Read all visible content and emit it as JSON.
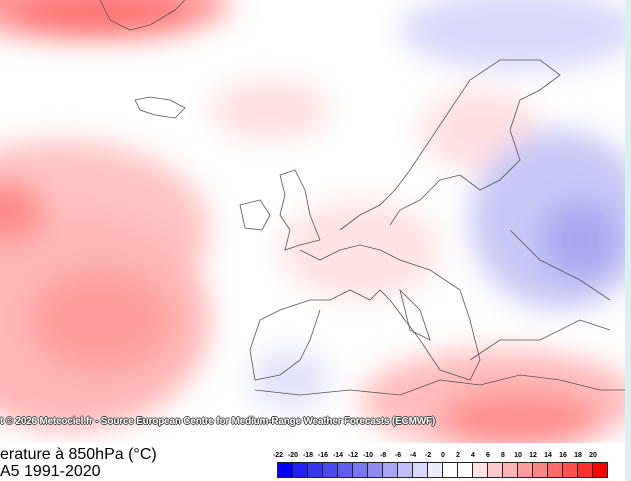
{
  "credit": "t © 2026 Meteociel.fr - Source European Centre for Medium-Range Weather Forecasts (ECMWF)",
  "title_line1": "erature à 850hPa (°C)",
  "title_line2": "A5 1991-2020",
  "colorbar": {
    "labels": [
      "-22",
      "-20",
      "-18",
      "-16",
      "-14",
      "-12",
      "-10",
      "-8",
      "-6",
      "-4",
      "-2",
      "0",
      "2",
      "4",
      "6",
      "8",
      "10",
      "12",
      "14",
      "16",
      "18",
      "20"
    ],
    "colors": [
      "#0000ff",
      "#2020f4",
      "#3838f0",
      "#4a4aee",
      "#6060ee",
      "#7676ee",
      "#8c8cf0",
      "#a6a6f2",
      "#c0c0f6",
      "#d8d8fa",
      "#ececfc",
      "#ffffff",
      "#ffffff",
      "#ffe0e0",
      "#ffcaca",
      "#ffb4b4",
      "#ff9c9c",
      "#ff8484",
      "#ff6a6a",
      "#ff5050",
      "#ff3030",
      "#ff0000"
    ]
  }
}
